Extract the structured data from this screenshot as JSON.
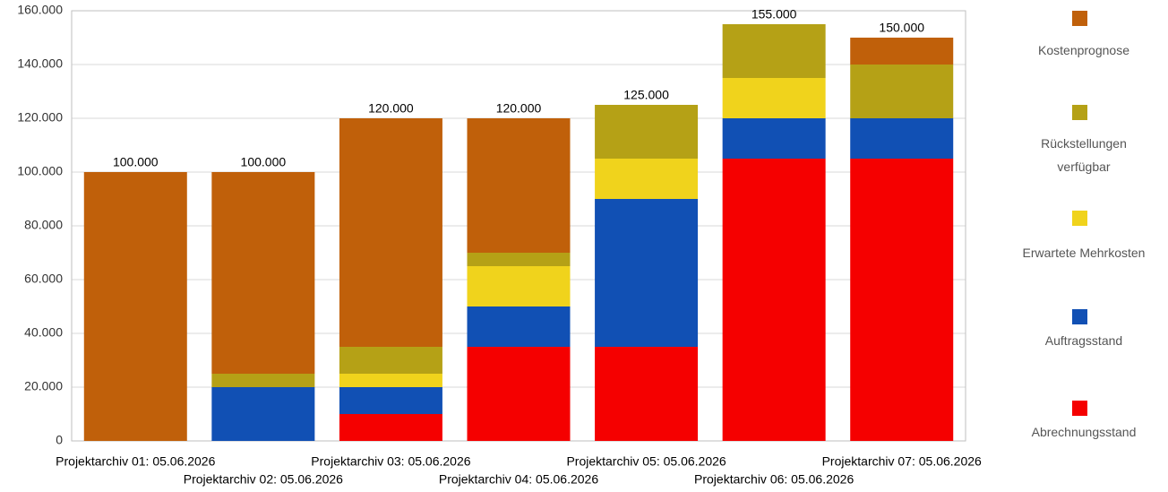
{
  "chart_data": {
    "type": "stacked_bar",
    "categories": [
      "Projektarchiv 01: 05.06.2026",
      "Projektarchiv 02: 05.06.2026",
      "Projektarchiv 03: 05.06.2026",
      "Projektarchiv 04: 05.06.2026",
      "Projektarchiv 05: 05.06.2026",
      "Projektarchiv 06: 05.06.2026",
      "Projektarchiv 07: 05.06.2026"
    ],
    "series": [
      {
        "name": "Abrechnungsstand",
        "color": "#f50000",
        "values": [
          0,
          0,
          10000,
          35000,
          35000,
          105000,
          105000
        ]
      },
      {
        "name": "Auftragsstand",
        "color": "#1150b4",
        "values": [
          0,
          20000,
          10000,
          15000,
          55000,
          15000,
          15000
        ]
      },
      {
        "name": "Erwartete Mehrkosten",
        "color": "#f0d31c",
        "values": [
          0,
          0,
          5000,
          15000,
          15000,
          15000,
          0
        ]
      },
      {
        "name": "Rückstellungen verfügbar",
        "color": "#b5a116",
        "values": [
          0,
          5000,
          10000,
          5000,
          20000,
          20000,
          20000
        ]
      },
      {
        "name": "Kostenprognose",
        "color": "#c0600a",
        "values": [
          100000,
          75000,
          85000,
          50000,
          0,
          0,
          10000
        ]
      }
    ],
    "totals": {
      "values": [
        100000,
        100000,
        120000,
        120000,
        125000,
        155000,
        150000
      ],
      "value_labels": [
        "100.000",
        "100.000",
        "120.000",
        "120.000",
        "125.000",
        "155.000",
        "150.000"
      ]
    },
    "ylim": [
      0,
      160000
    ],
    "yticks": [
      0,
      {
        "value": 20000,
        "label": "20.000"
      },
      {
        "value": 40000,
        "label": "40.000"
      },
      {
        "value": 60000,
        "label": "60.000"
      },
      {
        "value": 80000,
        "label": "80.000"
      },
      {
        "value": 100000,
        "label": "100.000"
      },
      {
        "value": 120000,
        "label": "120.000"
      },
      {
        "value": 140000,
        "label": "140.000"
      },
      {
        "value": 160000,
        "label": "160.000"
      }
    ],
    "grid": true,
    "legend": "right"
  }
}
